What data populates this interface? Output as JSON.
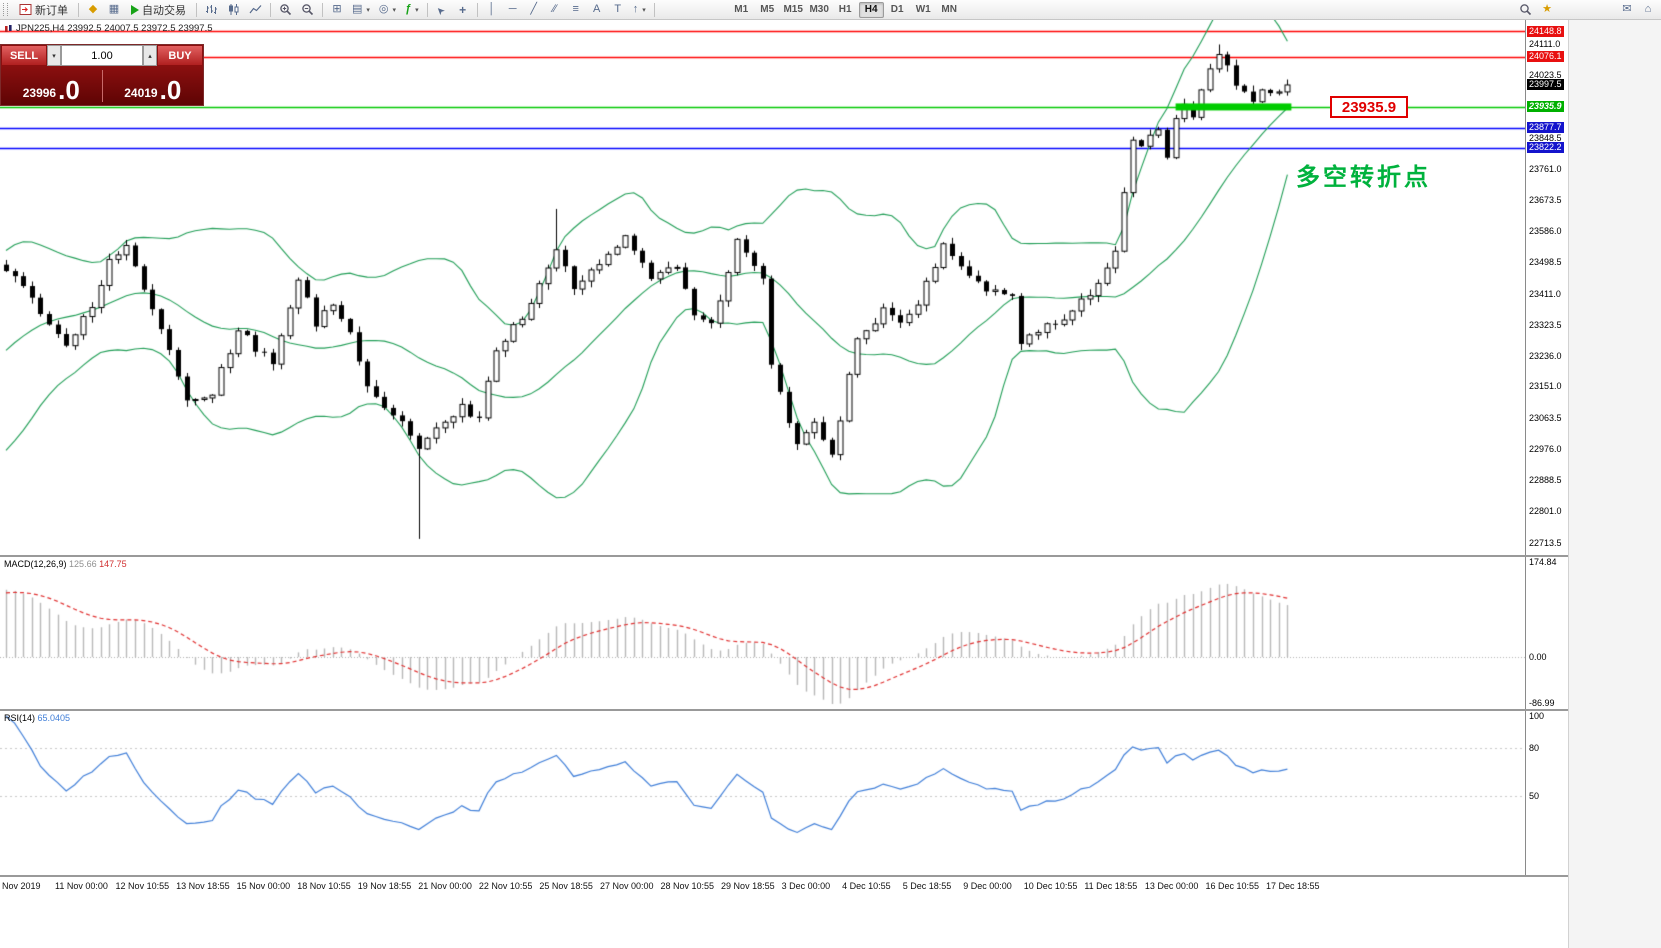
{
  "toolbar": {
    "new_order_label": "新订单",
    "autotrade_label": "自动交易",
    "timeframes": [
      "M1",
      "M5",
      "M15",
      "M30",
      "H1",
      "H4",
      "D1",
      "W1",
      "MN"
    ],
    "active_timeframe": "H4"
  },
  "icons": {
    "metaeditor": "◆",
    "chart_window": "▦",
    "tile_windows": "⊞",
    "new_chart": "▤",
    "profiles": "◎",
    "indicators": "ƒ",
    "cursor": "➤",
    "crosshair": "+",
    "vertical_line": "│",
    "horizontal_line": "─",
    "trendline": "╱",
    "channel": "∕∕",
    "fibonacci": "≡",
    "text": "A",
    "text_label": "T",
    "arrow": "↑",
    "caret": "▾",
    "caret_up": "▴",
    "caret_down": "▾",
    "star": "★",
    "mail": "✉",
    "home": "⌂"
  },
  "symbol_info": {
    "text": "JPN225,H4  23992.5 24007.5 23972.5 23997.5"
  },
  "trade_panel": {
    "sell_label": "SELL",
    "buy_label": "BUY",
    "volume_value": "1.00",
    "sell_price_main": "23996",
    "sell_price_big": ".0",
    "buy_price_main": "24019",
    "buy_price_big": ".0"
  },
  "annotations": {
    "price_tag": "23935.9",
    "note": "多空转折点"
  },
  "price_axis": [
    {
      "value": "24148.8",
      "style": "red"
    },
    {
      "value": "24111.0",
      "style": "plain"
    },
    {
      "value": "24076.1",
      "style": "red"
    },
    {
      "value": "24023.5",
      "style": "plain"
    },
    {
      "value": "23997.5",
      "style": "current"
    },
    {
      "value": "23935.9",
      "style": "green"
    },
    {
      "value": "23877.7",
      "style": "blue"
    },
    {
      "value": "23848.5",
      "style": "plain"
    },
    {
      "value": "23822.2",
      "style": "blue"
    },
    {
      "value": "23761.0",
      "style": "plain"
    },
    {
      "value": "23673.5",
      "style": "plain"
    },
    {
      "value": "23586.0",
      "style": "plain"
    },
    {
      "value": "23498.5",
      "style": "plain"
    },
    {
      "value": "23411.0",
      "style": "plain"
    },
    {
      "value": "23323.5",
      "style": "plain"
    },
    {
      "value": "23236.0",
      "style": "plain"
    },
    {
      "value": "23151.0",
      "style": "plain"
    },
    {
      "value": "23063.5",
      "style": "plain"
    },
    {
      "value": "22976.0",
      "style": "plain"
    },
    {
      "value": "22888.5",
      "style": "plain"
    },
    {
      "value": "22801.0",
      "style": "plain"
    },
    {
      "value": "22713.5",
      "style": "plain"
    }
  ],
  "macd": {
    "label": "MACD(12,26,9)",
    "main_value": "125.66",
    "signal_value": "147.75",
    "axis_labels": [
      {
        "value": "174.84",
        "pos": "top"
      },
      {
        "value": "0.00",
        "pos": "zero"
      },
      {
        "value": "-86.99",
        "pos": "bottom"
      }
    ]
  },
  "rsi": {
    "label": "RSI(14)",
    "value": "65.0405",
    "axis_labels": [
      {
        "value": "100",
        "level": 100
      },
      {
        "value": "80",
        "level": 80
      },
      {
        "value": "50",
        "level": 50
      }
    ],
    "levels": [
      80,
      50
    ]
  },
  "time_axis": [
    "Nov 2019",
    "11 Nov 00:00",
    "12 Nov 10:55",
    "13 Nov 18:55",
    "15 Nov 00:00",
    "18 Nov 10:55",
    "19 Nov 18:55",
    "21 Nov 00:00",
    "22 Nov 10:55",
    "25 Nov 18:55",
    "27 Nov 00:00",
    "28 Nov 10:55",
    "29 Nov 18:55",
    "3 Dec 00:00",
    "4 Dec 10:55",
    "5 Dec 18:55",
    "9 Dec 00:00",
    "10 Dec 10:55",
    "11 Dec 18:55",
    "13 Dec 00:00",
    "16 Dec 10:55",
    "17 Dec 18:55"
  ],
  "chart_data": {
    "type": "candlestick",
    "symbol": "JPN225",
    "timeframe": "H4",
    "ohlc_current": {
      "open": 23992.5,
      "high": 24007.5,
      "low": 23972.5,
      "close": 23997.5
    },
    "price_axis_top": 24148.8,
    "price_axis_bottom": 22713.5,
    "candle_count": 150,
    "close_path_anchors": [
      [
        0,
        23480
      ],
      [
        3,
        23400
      ],
      [
        7,
        23255
      ],
      [
        10,
        23380
      ],
      [
        12,
        23500
      ],
      [
        14,
        23560
      ],
      [
        16,
        23430
      ],
      [
        18,
        23310
      ],
      [
        21,
        23110
      ],
      [
        24,
        23130
      ],
      [
        27,
        23320
      ],
      [
        29,
        23260
      ],
      [
        31,
        23210
      ],
      [
        34,
        23450
      ],
      [
        36,
        23330
      ],
      [
        38,
        23380
      ],
      [
        40,
        23300
      ],
      [
        42,
        23150
      ],
      [
        45,
        23080
      ],
      [
        48,
        22980
      ],
      [
        50,
        23030
      ],
      [
        53,
        23090
      ],
      [
        55,
        23060
      ],
      [
        57,
        23250
      ],
      [
        60,
        23350
      ],
      [
        63,
        23480
      ],
      [
        64,
        23540
      ],
      [
        66,
        23430
      ],
      [
        69,
        23500
      ],
      [
        72,
        23580
      ],
      [
        75,
        23460
      ],
      [
        78,
        23490
      ],
      [
        80,
        23350
      ],
      [
        82,
        23320
      ],
      [
        85,
        23560
      ],
      [
        88,
        23460
      ],
      [
        89,
        23210
      ],
      [
        92,
        22985
      ],
      [
        94,
        23060
      ],
      [
        96,
        22960
      ],
      [
        99,
        23280
      ],
      [
        102,
        23360
      ],
      [
        104,
        23330
      ],
      [
        106,
        23390
      ],
      [
        109,
        23550
      ],
      [
        111,
        23480
      ],
      [
        114,
        23420
      ],
      [
        117,
        23400
      ],
      [
        118,
        23260
      ],
      [
        120,
        23310
      ],
      [
        123,
        23340
      ],
      [
        125,
        23390
      ],
      [
        127,
        23430
      ],
      [
        129,
        23520
      ],
      [
        130,
        23700
      ],
      [
        131,
        23850
      ],
      [
        132,
        23820
      ],
      [
        134,
        23880
      ],
      [
        135,
        23790
      ],
      [
        136,
        23900
      ],
      [
        137,
        23950
      ],
      [
        138,
        23900
      ],
      [
        139,
        23980
      ],
      [
        141,
        24080
      ],
      [
        142,
        24040
      ],
      [
        143,
        24000
      ],
      [
        144,
        23985
      ],
      [
        145,
        23960
      ],
      [
        146,
        23975
      ],
      [
        148,
        23990
      ],
      [
        149,
        23997.5
      ]
    ],
    "special_wicks": [
      {
        "index": 48,
        "low": 22725
      },
      {
        "index": 64,
        "high": 23650
      },
      {
        "index": 141,
        "high": 24111
      }
    ],
    "horizontal_lines": [
      {
        "price": 24148.8,
        "color": "#ff0000"
      },
      {
        "price": 24076.1,
        "color": "#ff0000"
      },
      {
        "price": 23935.9,
        "color": "#00c800"
      },
      {
        "price": 23877.7,
        "color": "#0000ff"
      },
      {
        "price": 23822.2,
        "color": "#0000ff"
      }
    ],
    "support_segment": {
      "price": 23935.9,
      "from_candle": 136,
      "to_candle": 149,
      "color": "#00cc00"
    },
    "indicators": {
      "bollinger": {
        "period": 20,
        "deviation": 2,
        "color": "#1f9d55"
      },
      "macd": {
        "fast": 12,
        "slow": 26,
        "signal": 9,
        "hist_color": "#b8b8b8",
        "signal_color": "#e03030"
      },
      "rsi": {
        "period": 14,
        "color": "#3f7ed8"
      }
    }
  },
  "colors": {
    "note_green": "#00b23d",
    "tag_red": "#e00000",
    "line_red": "#ff0000",
    "line_green": "#00c800",
    "line_blue": "#0000ff",
    "panel_red_dark": "#6b0505",
    "panel_red": "#9e1515",
    "button_red": "#cc2a2a",
    "current_price_bg": "#000000"
  }
}
